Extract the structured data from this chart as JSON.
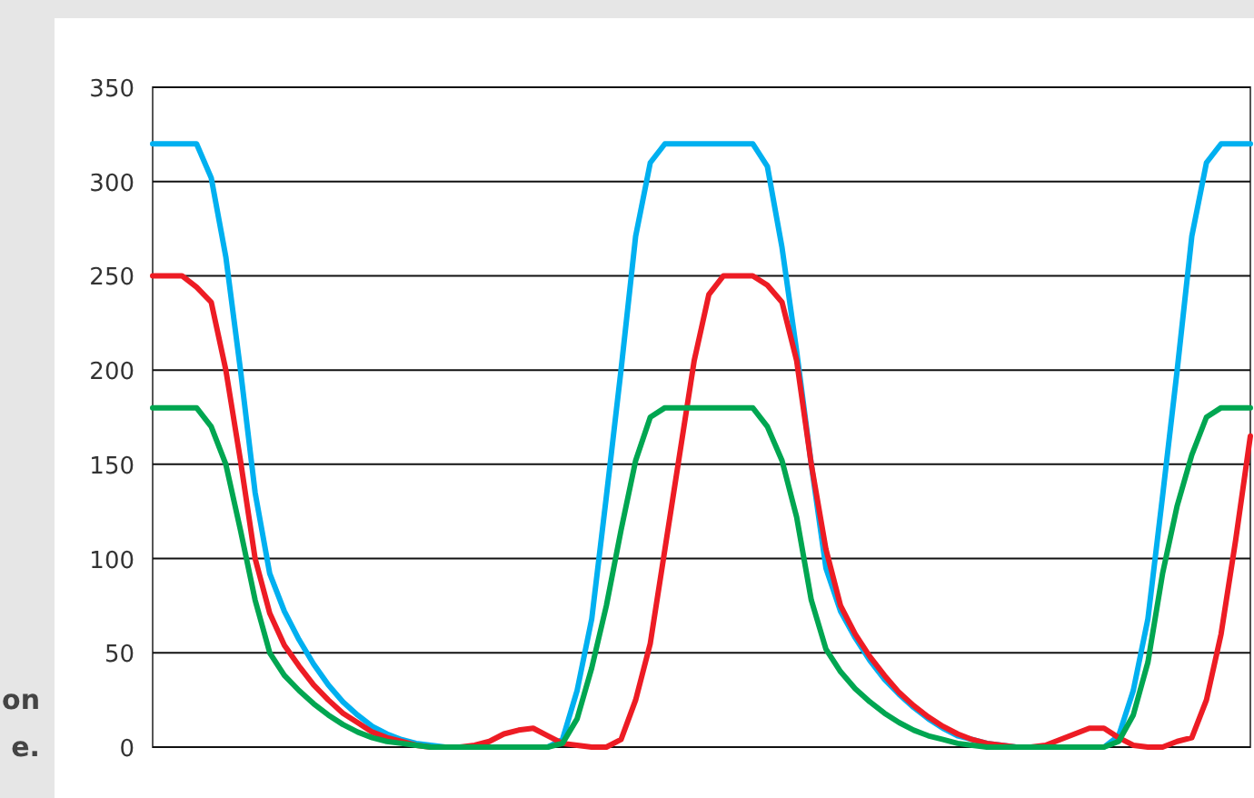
{
  "chart_data": {
    "type": "line",
    "categories": [
      null,
      null,
      null,
      null,
      null,
      null,
      null,
      null,
      null,
      null,
      null,
      null,
      null,
      null,
      null,
      null,
      null,
      null,
      null,
      null,
      null,
      null,
      null,
      null,
      null,
      null,
      null,
      null,
      null,
      null,
      null,
      null,
      null,
      null,
      null,
      null,
      null,
      null,
      null,
      null,
      null,
      null,
      null,
      null,
      null,
      null,
      null,
      null,
      null,
      null,
      null,
      null,
      null,
      null,
      null,
      null,
      null,
      null,
      null,
      null,
      null,
      null,
      null,
      null,
      null,
      null,
      null,
      null,
      null,
      null,
      null,
      null,
      null,
      null,
      null,
      null
    ],
    "series": [
      {
        "color": "#00b0f0",
        "values": [
          320,
          320,
          320,
          320,
          302,
          260,
          200,
          135,
          92,
          72,
          57,
          44,
          33,
          24,
          17,
          11,
          7,
          4,
          2,
          1,
          0,
          0,
          0,
          0,
          0,
          0,
          0,
          0,
          4,
          30,
          68,
          133,
          200,
          271,
          310,
          320,
          320,
          320,
          320,
          320,
          320,
          320,
          308,
          265,
          210,
          150,
          95,
          72,
          58,
          46,
          36,
          28,
          21,
          15,
          10,
          6,
          4,
          2,
          1,
          0,
          0,
          0,
          0,
          0,
          0,
          0,
          6,
          30,
          68,
          133,
          200,
          271,
          310,
          320,
          320,
          320
        ]
      },
      {
        "color": "#ed1c24",
        "values": [
          250,
          250,
          250,
          244,
          236,
          200,
          152,
          100,
          71,
          54,
          43,
          33,
          25,
          18,
          13,
          8,
          5,
          3,
          1,
          0,
          0,
          0,
          1,
          3,
          7,
          9,
          10,
          6,
          2,
          1,
          0,
          0,
          4,
          25,
          55,
          105,
          155,
          205,
          240,
          250,
          250,
          250,
          245,
          236,
          205,
          150,
          105,
          75,
          60,
          48,
          38,
          29,
          22,
          16,
          11,
          7,
          4,
          2,
          1,
          0,
          0,
          1,
          4,
          7,
          10,
          10,
          5,
          1,
          0,
          0,
          3,
          5,
          25,
          60,
          110,
          165
        ]
      },
      {
        "color": "#00a651",
        "values": [
          180,
          180,
          180,
          180,
          170,
          150,
          115,
          78,
          50,
          38,
          30,
          23,
          17,
          12,
          8,
          5,
          3,
          2,
          1,
          0,
          0,
          0,
          0,
          0,
          0,
          0,
          0,
          0,
          2,
          15,
          42,
          75,
          115,
          152,
          175,
          180,
          180,
          180,
          180,
          180,
          180,
          180,
          170,
          152,
          122,
          78,
          52,
          40,
          31,
          24,
          18,
          13,
          9,
          6,
          4,
          2,
          1,
          0,
          0,
          0,
          0,
          0,
          0,
          0,
          0,
          0,
          3,
          17,
          45,
          92,
          128,
          155,
          175,
          180,
          180,
          180
        ]
      }
    ],
    "ylim": [
      0,
      350
    ],
    "yticks": [
      0,
      50,
      100,
      150,
      200,
      250,
      300,
      350
    ],
    "grid": "y",
    "tick_labels": "y",
    "line_style": "solid",
    "marker": "none",
    "annotations": [
      "on",
      "e."
    ]
  }
}
